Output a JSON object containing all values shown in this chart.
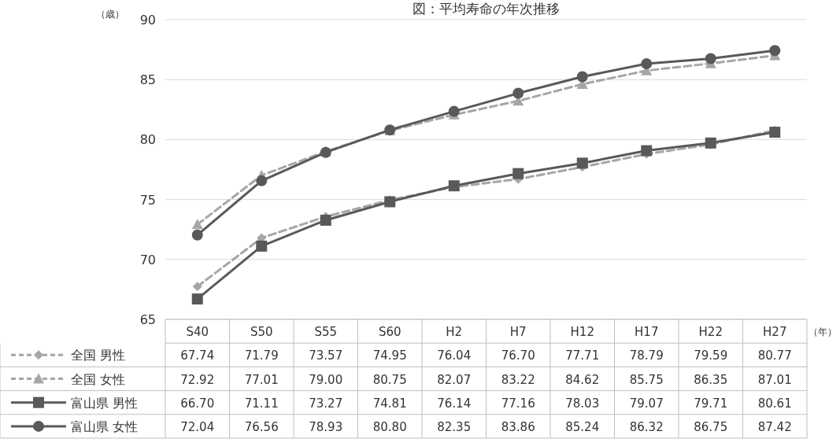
{
  "chart_data": {
    "type": "line",
    "title": "図：平均寿命の年次推移",
    "ylabel": "（歳）",
    "xlabel": "（年）",
    "categories": [
      "S40",
      "S50",
      "S55",
      "S60",
      "H2",
      "H7",
      "H12",
      "H17",
      "H22",
      "H27"
    ],
    "ylim": [
      65,
      90
    ],
    "yticks": [
      65,
      70,
      75,
      80,
      85,
      90
    ],
    "grid": "y",
    "legend": "bottom",
    "series": [
      {
        "name": "全国 男性",
        "color": "#a6a6a6",
        "marker": "diamond",
        "line_style": "dashed",
        "values": [
          67.74,
          71.79,
          73.57,
          74.95,
          76.04,
          76.7,
          77.71,
          78.79,
          79.59,
          80.77
        ],
        "value_labels": [
          "67.74",
          "71.79",
          "73.57",
          "74.95",
          "76.04",
          "76.70",
          "77.71",
          "78.79",
          "79.59",
          "80.77"
        ]
      },
      {
        "name": "全国 女性",
        "color": "#a6a6a6",
        "marker": "triangle",
        "line_style": "dashed",
        "values": [
          72.92,
          77.01,
          79.0,
          80.75,
          82.07,
          83.22,
          84.62,
          85.75,
          86.35,
          87.01
        ],
        "value_labels": [
          "72.92",
          "77.01",
          "79.00",
          "80.75",
          "82.07",
          "83.22",
          "84.62",
          "85.75",
          "86.35",
          "87.01"
        ]
      },
      {
        "name": "富山県 男性",
        "color": "#595959",
        "marker": "square",
        "line_style": "solid",
        "values": [
          66.7,
          71.11,
          73.27,
          74.81,
          76.14,
          77.16,
          78.03,
          79.07,
          79.71,
          80.61
        ],
        "value_labels": [
          "66.70",
          "71.11",
          "73.27",
          "74.81",
          "76.14",
          "77.16",
          "78.03",
          "79.07",
          "79.71",
          "80.61"
        ]
      },
      {
        "name": "富山県 女性",
        "color": "#595959",
        "marker": "circle",
        "line_style": "solid",
        "values": [
          72.04,
          76.56,
          78.93,
          80.8,
          82.35,
          83.86,
          85.24,
          86.32,
          86.75,
          87.42
        ],
        "value_labels": [
          "72.04",
          "76.56",
          "78.93",
          "80.80",
          "82.35",
          "83.86",
          "85.24",
          "86.32",
          "86.75",
          "87.42"
        ]
      }
    ]
  }
}
